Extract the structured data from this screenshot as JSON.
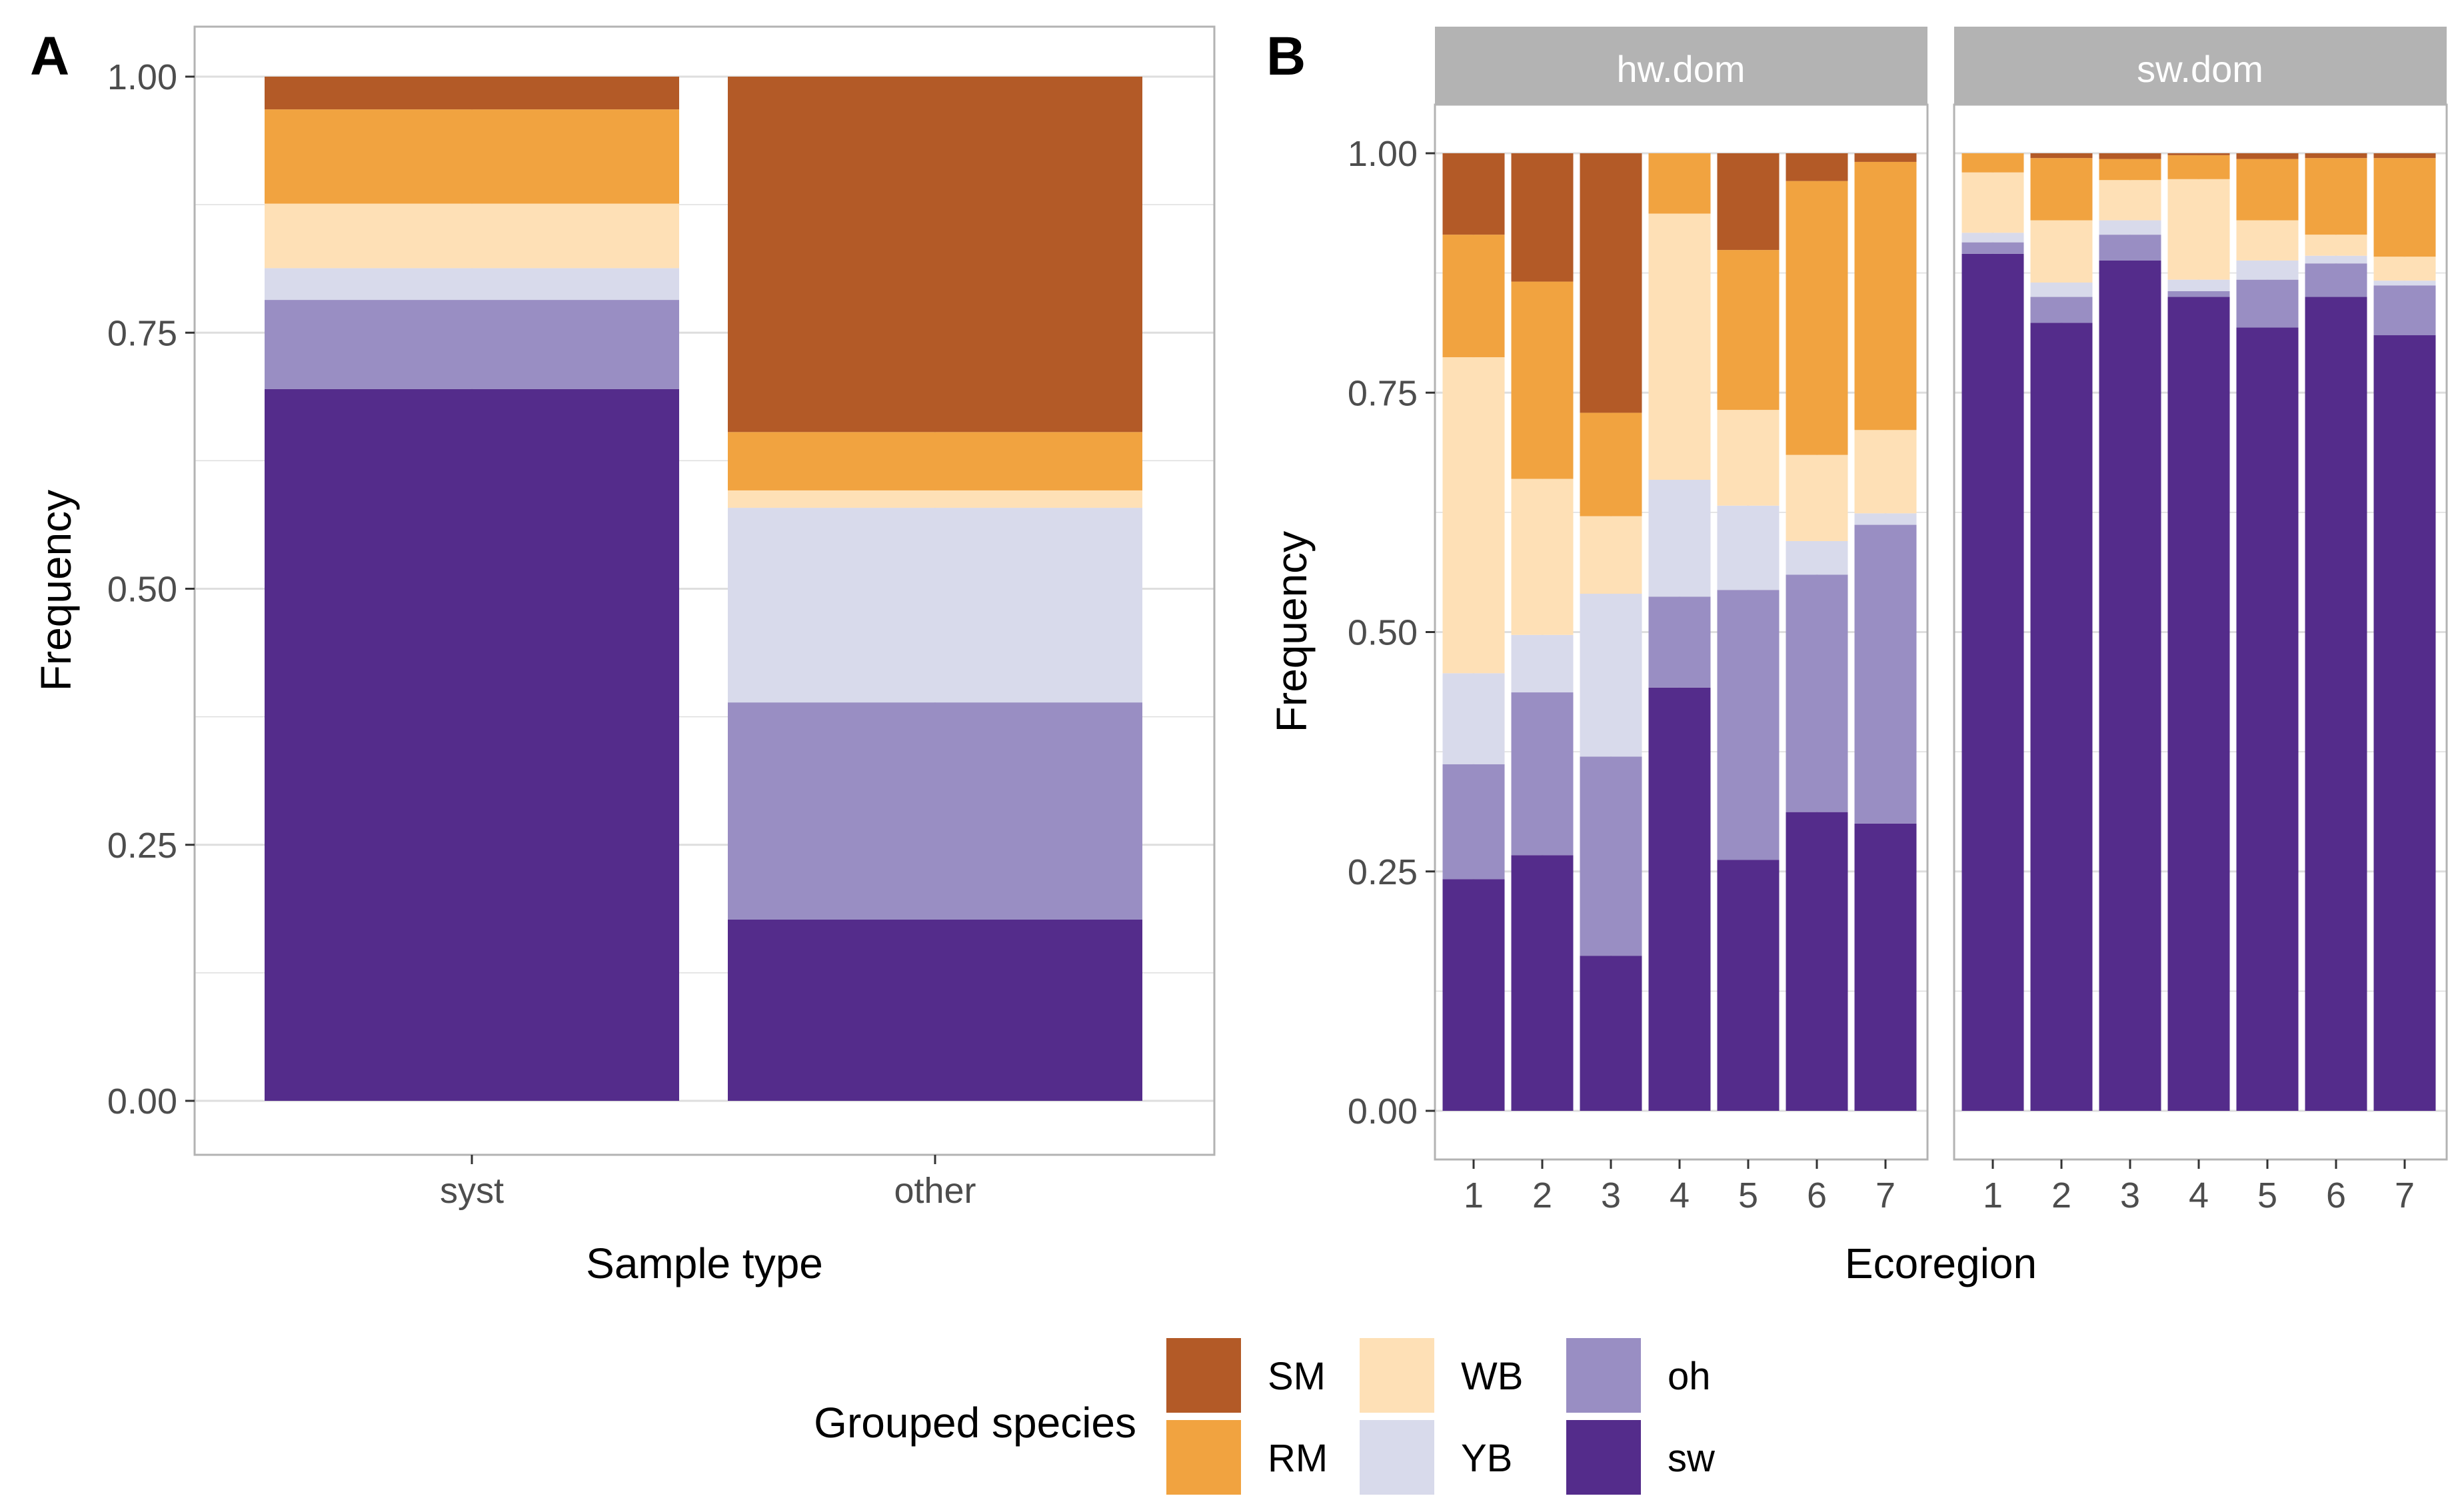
{
  "colors": {
    "SM": "#B35A27",
    "RM": "#F1A340",
    "WB": "#FEE0B6",
    "YB": "#D8DAEB",
    "oh": "#998EC3",
    "sw": "#542C8B",
    "panel_bg": "#FFFFFF",
    "grid": "#DEDEDE",
    "border": "#B3B3B3",
    "strip_bg": "#B3B3B3",
    "strip_text": "#FFFFFF",
    "tick_text": "#4D4D4D",
    "title_text": "#000000"
  },
  "stack_order": [
    "sw",
    "oh",
    "YB",
    "WB",
    "RM",
    "SM"
  ],
  "chart_data": [
    {
      "panel_label": "A",
      "type": "bar",
      "stacked": true,
      "title": "",
      "xlabel": "Sample type",
      "ylabel": "Frequency",
      "ylim": [
        0,
        1
      ],
      "yticks": [
        "0.00",
        "0.25",
        "0.50",
        "0.75",
        "1.00"
      ],
      "categories": [
        "syst",
        "other"
      ],
      "series": [
        {
          "name": "sw",
          "values": [
            0.695,
            0.177
          ]
        },
        {
          "name": "oh",
          "values": [
            0.087,
            0.212
          ]
        },
        {
          "name": "YB",
          "values": [
            0.031,
            0.19
          ]
        },
        {
          "name": "WB",
          "values": [
            0.063,
            0.017
          ]
        },
        {
          "name": "RM",
          "values": [
            0.092,
            0.057
          ]
        },
        {
          "name": "SM",
          "values": [
            0.032,
            0.347
          ]
        }
      ]
    },
    {
      "panel_label": "B",
      "type": "bar",
      "stacked": true,
      "title": "",
      "xlabel": "Ecoregion",
      "ylabel": "Frequency",
      "ylim": [
        0,
        1
      ],
      "yticks": [
        "0.00",
        "0.25",
        "0.50",
        "0.75",
        "1.00"
      ],
      "facets": [
        {
          "strip": "hw.dom",
          "categories": [
            "1",
            "2",
            "3",
            "4",
            "5",
            "6",
            "7"
          ],
          "series": [
            {
              "name": "sw",
              "values": [
                0.242,
                0.267,
                0.162,
                0.442,
                0.262,
                0.312,
                0.3
              ]
            },
            {
              "name": "oh",
              "values": [
                0.12,
                0.17,
                0.208,
                0.095,
                0.282,
                0.248,
                0.312
              ]
            },
            {
              "name": "YB",
              "values": [
                0.095,
                0.06,
                0.17,
                0.122,
                0.088,
                0.035,
                0.012
              ]
            },
            {
              "name": "WB",
              "values": [
                0.33,
                0.163,
                0.081,
                0.278,
                0.1,
                0.09,
                0.087
              ]
            },
            {
              "name": "RM",
              "values": [
                0.128,
                0.206,
                0.108,
                0.063,
                0.167,
                0.286,
                0.28
              ]
            },
            {
              "name": "SM",
              "values": [
                0.085,
                0.134,
                0.271,
                0.0,
                0.101,
                0.029,
                0.009
              ]
            }
          ]
        },
        {
          "strip": "sw.dom",
          "categories": [
            "1",
            "2",
            "3",
            "4",
            "5",
            "6",
            "7"
          ],
          "series": [
            {
              "name": "sw",
              "values": [
                0.895,
                0.823,
                0.888,
                0.85,
                0.818,
                0.85,
                0.81
              ]
            },
            {
              "name": "oh",
              "values": [
                0.012,
                0.027,
                0.027,
                0.006,
                0.05,
                0.035,
                0.052
              ]
            },
            {
              "name": "YB",
              "values": [
                0.01,
                0.015,
                0.015,
                0.012,
                0.02,
                0.008,
                0.005
              ]
            },
            {
              "name": "WB",
              "values": [
                0.063,
                0.065,
                0.042,
                0.105,
                0.042,
                0.022,
                0.025
              ]
            },
            {
              "name": "RM",
              "values": [
                0.02,
                0.065,
                0.022,
                0.025,
                0.064,
                0.08,
                0.103
              ]
            },
            {
              "name": "SM",
              "values": [
                0.0,
                0.005,
                0.006,
                0.002,
                0.006,
                0.005,
                0.005
              ]
            }
          ]
        }
      ]
    }
  ],
  "legend": {
    "title": "Grouped species",
    "position": "bottom",
    "items": [
      {
        "key": "SM",
        "label": "SM"
      },
      {
        "key": "RM",
        "label": "RM"
      },
      {
        "key": "WB",
        "label": "WB"
      },
      {
        "key": "YB",
        "label": "YB"
      },
      {
        "key": "oh",
        "label": "oh"
      },
      {
        "key": "sw",
        "label": "sw"
      }
    ]
  }
}
